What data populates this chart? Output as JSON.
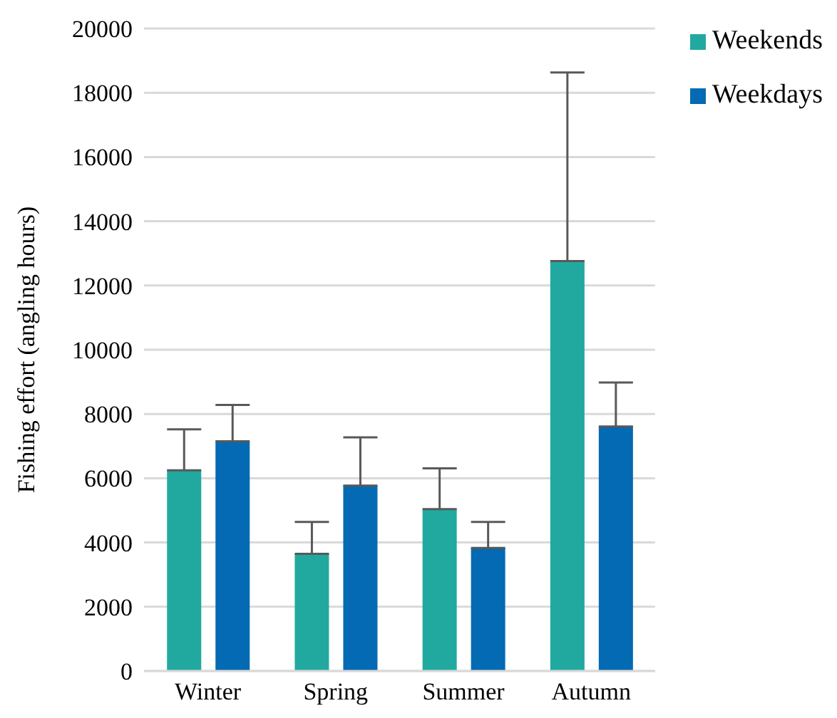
{
  "chart_data": {
    "type": "bar",
    "ylabel": "Fishing effort (angling hours)",
    "categories": [
      "Winter",
      "Spring",
      "Summer",
      "Autumn"
    ],
    "series": [
      {
        "name": "Weekends",
        "color": "#21a9a0",
        "values": [
          6250,
          3650,
          5040,
          12760
        ],
        "errors": [
          [
            6250,
            7520
          ],
          [
            3650,
            4640
          ],
          [
            5040,
            6310
          ],
          [
            12760,
            18630
          ]
        ]
      },
      {
        "name": "Weekdays",
        "color": "#036ab3",
        "values": [
          7150,
          5770,
          3830,
          7610
        ],
        "errors": [
          [
            7150,
            8280
          ],
          [
            5770,
            7270
          ],
          [
            3830,
            4640
          ],
          [
            7610,
            8980
          ]
        ]
      }
    ],
    "ylim": [
      0,
      20000
    ],
    "yticks": [
      0,
      2000,
      4000,
      6000,
      8000,
      10000,
      12000,
      14000,
      16000,
      18000,
      20000
    ],
    "grid": "y",
    "legend": "top right"
  }
}
